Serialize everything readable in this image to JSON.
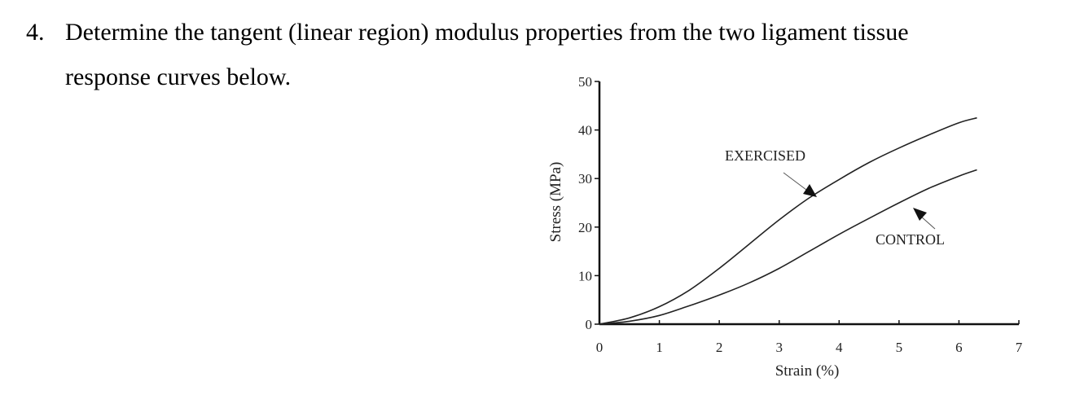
{
  "question": {
    "number": "4.",
    "line1": "Determine the tangent (linear region) modulus properties from the two ligament tissue",
    "line2": "response curves below."
  },
  "chart_data": {
    "type": "line",
    "xlabel": "Strain (%)",
    "ylabel": "Stress (MPa)",
    "xlim": [
      0,
      7
    ],
    "ylim": [
      0,
      50
    ],
    "x_ticks": [
      "0",
      "1",
      "2",
      "3",
      "4",
      "5",
      "6",
      "7"
    ],
    "y_ticks": [
      "0",
      "10",
      "20",
      "30",
      "40",
      "50"
    ],
    "grid": false,
    "series": [
      {
        "name": "EXERCISED",
        "color": "#222222",
        "x": [
          0,
          0.5,
          1,
          1.5,
          2,
          2.5,
          3,
          3.5,
          4,
          4.5,
          5,
          5.5,
          6,
          6.3
        ],
        "y": [
          0,
          1.3,
          3.6,
          7.0,
          11.5,
          16.5,
          21.5,
          26.0,
          29.8,
          33.3,
          36.3,
          39.0,
          41.5,
          42.5
        ]
      },
      {
        "name": "CONTROL",
        "color": "#222222",
        "x": [
          0,
          0.5,
          1,
          1.5,
          2,
          2.5,
          3,
          3.5,
          4,
          4.5,
          5,
          5.5,
          6,
          6.3
        ],
        "y": [
          0,
          0.6,
          1.8,
          3.8,
          6.0,
          8.5,
          11.5,
          15.0,
          18.5,
          21.8,
          25.0,
          28.0,
          30.5,
          31.8
        ]
      }
    ],
    "annotations": [
      {
        "text": "EXERCISED",
        "points_to": "upper curve"
      },
      {
        "text": "CONTROL",
        "points_to": "lower curve"
      }
    ]
  }
}
